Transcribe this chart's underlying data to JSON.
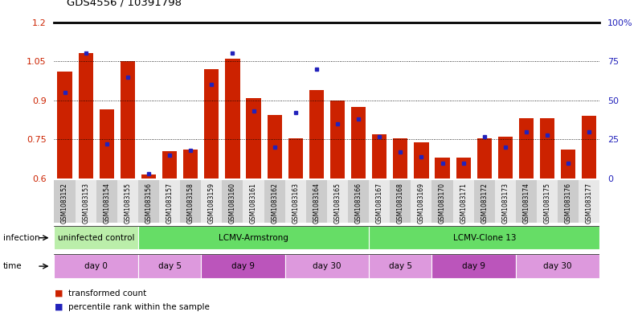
{
  "title": "GDS4556 / 10391798",
  "samples": [
    "GSM1083152",
    "GSM1083153",
    "GSM1083154",
    "GSM1083155",
    "GSM1083156",
    "GSM1083157",
    "GSM1083158",
    "GSM1083159",
    "GSM1083160",
    "GSM1083161",
    "GSM1083162",
    "GSM1083163",
    "GSM1083164",
    "GSM1083165",
    "GSM1083166",
    "GSM1083167",
    "GSM1083168",
    "GSM1083169",
    "GSM1083170",
    "GSM1083171",
    "GSM1083172",
    "GSM1083173",
    "GSM1083174",
    "GSM1083175",
    "GSM1083176",
    "GSM1083177"
  ],
  "transformed_count": [
    1.01,
    1.08,
    0.865,
    1.05,
    0.615,
    0.705,
    0.71,
    1.02,
    1.06,
    0.91,
    0.845,
    0.755,
    0.94,
    0.9,
    0.875,
    0.77,
    0.755,
    0.74,
    0.68,
    0.68,
    0.755,
    0.76,
    0.83,
    0.83,
    0.71,
    0.84
  ],
  "percentile_rank": [
    55,
    80,
    22,
    65,
    3,
    15,
    18,
    60,
    80,
    43,
    20,
    42,
    70,
    35,
    38,
    27,
    17,
    14,
    10,
    10,
    27,
    20,
    30,
    28,
    10,
    30
  ],
  "ymin": 0.6,
  "ymax": 1.2,
  "yticks": [
    0.6,
    0.75,
    0.9,
    1.05,
    1.2
  ],
  "y2ticks": [
    0,
    25,
    50,
    75,
    100
  ],
  "y2labels": [
    "0",
    "25",
    "50",
    "75",
    "100%"
  ],
  "bar_color": "#cc2200",
  "blue_color": "#2222bb",
  "infection_groups": [
    {
      "label": "uninfected control",
      "start": 0,
      "end": 4,
      "color": "#bbeeaa"
    },
    {
      "label": "LCMV-Armstrong",
      "start": 4,
      "end": 15,
      "color": "#66dd66"
    },
    {
      "label": "LCMV-Clone 13",
      "start": 15,
      "end": 26,
      "color": "#66dd66"
    }
  ],
  "time_groups": [
    {
      "label": "day 0",
      "start": 0,
      "end": 4,
      "color": "#dd99dd"
    },
    {
      "label": "day 5",
      "start": 4,
      "end": 7,
      "color": "#dd99dd"
    },
    {
      "label": "day 9",
      "start": 7,
      "end": 11,
      "color": "#bb55bb"
    },
    {
      "label": "day 30",
      "start": 11,
      "end": 15,
      "color": "#dd99dd"
    },
    {
      "label": "day 5",
      "start": 15,
      "end": 18,
      "color": "#dd99dd"
    },
    {
      "label": "day 9",
      "start": 18,
      "end": 22,
      "color": "#bb55bb"
    },
    {
      "label": "day 30",
      "start": 22,
      "end": 26,
      "color": "#dd99dd"
    }
  ]
}
